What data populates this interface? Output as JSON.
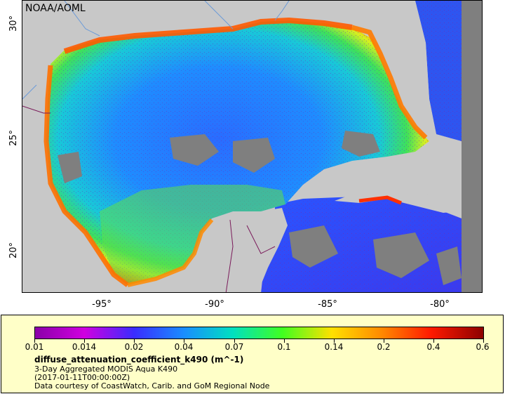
{
  "credit": "NOAA/AOML",
  "lat_ticks": [
    "30°",
    "25°",
    "20°"
  ],
  "lon_ticks": [
    "-95°",
    "-90°",
    "-85°",
    "-80°"
  ],
  "legend": {
    "colorbar_labels": [
      "0.01",
      "0.014",
      "0.02",
      "0.04",
      "0.07",
      "0.1",
      "0.14",
      "0.2",
      "0.4",
      "0.6"
    ],
    "variable": "diffuse_attenuation_coefficient_k490 (m^-1)",
    "line1": "3-Day Aggregated MODIS Aqua K490",
    "line2": "(2017-01-11T00:00:00Z)",
    "line3": "Data courtesy of CoastWatch, Carib. and GoM Regional Node"
  },
  "colors": {
    "land": "#c8c8c8",
    "nodata": "#7f7f7f",
    "legend_bg": "#ffffc8",
    "open_water": "#2a7fff",
    "coastal_high": "#ff6a00"
  }
}
